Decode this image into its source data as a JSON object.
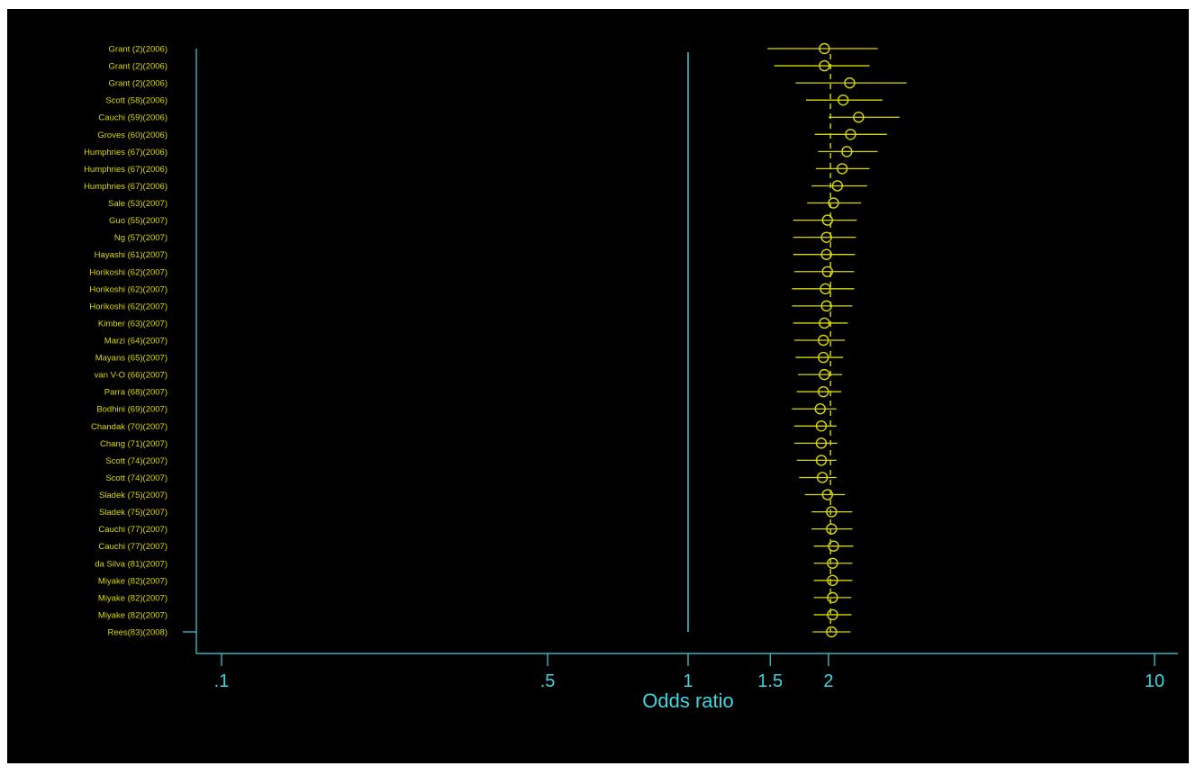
{
  "colors": {
    "background": "#000000",
    "axis": "#3fd6e0",
    "series": "#d9d900"
  },
  "chart_data": {
    "type": "scatter",
    "subtype": "forest-plot",
    "title": "",
    "xlabel": "Odds ratio",
    "ylabel": "",
    "x_scale": "log",
    "xlim": [
      0.09,
      11
    ],
    "x_ticks": [
      {
        "value": 0.1,
        "label": ".1"
      },
      {
        "value": 0.5,
        "label": ".5"
      },
      {
        "value": 1,
        "label": "1"
      },
      {
        "value": 1.5,
        "label": "1.5"
      },
      {
        "value": 2,
        "label": "2"
      },
      {
        "value": 10,
        "label": "10"
      }
    ],
    "null_line": 1,
    "pooled_estimate": 2.02,
    "grid": false,
    "legend": "none",
    "studies": [
      {
        "label": "Grant (2)(2006)",
        "or": 1.96,
        "lo": 1.48,
        "hi": 2.55
      },
      {
        "label": "Grant (2)(2006)",
        "or": 1.96,
        "lo": 1.53,
        "hi": 2.45
      },
      {
        "label": "Grant (2)(2006)",
        "or": 2.22,
        "lo": 1.7,
        "hi": 2.94
      },
      {
        "label": "Scott (58)(2006)",
        "or": 2.15,
        "lo": 1.79,
        "hi": 2.61
      },
      {
        "label": "Cauchi (59)(2006)",
        "or": 2.32,
        "lo": 2.0,
        "hi": 2.84
      },
      {
        "label": "Groves (60)(2006)",
        "or": 2.23,
        "lo": 1.87,
        "hi": 2.67
      },
      {
        "label": "Humphries (67)(2006)",
        "or": 2.19,
        "lo": 1.9,
        "hi": 2.55
      },
      {
        "label": "Humphries (67)(2006)",
        "or": 2.14,
        "lo": 1.88,
        "hi": 2.45
      },
      {
        "label": "Humphries (67)(2006)",
        "or": 2.09,
        "lo": 1.84,
        "hi": 2.42
      },
      {
        "label": "Sale (53)(2007)",
        "or": 2.05,
        "lo": 1.8,
        "hi": 2.35
      },
      {
        "label": "Guo (55)(2007)",
        "or": 1.99,
        "lo": 1.68,
        "hi": 2.3
      },
      {
        "label": "Ng (57)(2007)",
        "or": 1.98,
        "lo": 1.68,
        "hi": 2.29
      },
      {
        "label": "Hayashi (61)(2007)",
        "or": 1.98,
        "lo": 1.68,
        "hi": 2.28
      },
      {
        "label": "Horikoshi (62)(2007)",
        "or": 1.99,
        "lo": 1.69,
        "hi": 2.27
      },
      {
        "label": "Horikoshi (62)(2007)",
        "or": 1.97,
        "lo": 1.67,
        "hi": 2.27
      },
      {
        "label": "Horikoshi (62)(2007)",
        "or": 1.98,
        "lo": 1.67,
        "hi": 2.25
      },
      {
        "label": "Kimber (63)(2007)",
        "or": 1.96,
        "lo": 1.68,
        "hi": 2.2
      },
      {
        "label": "Marzi (64)(2007)",
        "or": 1.95,
        "lo": 1.69,
        "hi": 2.17
      },
      {
        "label": "Mayans (65)(2007)",
        "or": 1.95,
        "lo": 1.7,
        "hi": 2.15
      },
      {
        "label": "van V-O (66)(2007)",
        "or": 1.96,
        "lo": 1.72,
        "hi": 2.14
      },
      {
        "label": "Parra (68)(2007)",
        "or": 1.95,
        "lo": 1.71,
        "hi": 2.13
      },
      {
        "label": "Bodhini (69)(2007)",
        "or": 1.92,
        "lo": 1.67,
        "hi": 2.08
      },
      {
        "label": "Chandak (70)(2007)",
        "or": 1.93,
        "lo": 1.69,
        "hi": 2.08
      },
      {
        "label": "Chang (71)(2007)",
        "or": 1.93,
        "lo": 1.69,
        "hi": 2.09
      },
      {
        "label": "Scott (74)(2007)",
        "or": 1.93,
        "lo": 1.71,
        "hi": 2.08
      },
      {
        "label": "Scott (74)(2007)",
        "or": 1.94,
        "lo": 1.73,
        "hi": 2.08
      },
      {
        "label": "Sladek (75)(2007)",
        "or": 1.99,
        "lo": 1.78,
        "hi": 2.17
      },
      {
        "label": "Sladek (75)(2007)",
        "or": 2.03,
        "lo": 1.84,
        "hi": 2.25
      },
      {
        "label": "Cauchi (77)(2007)",
        "or": 2.03,
        "lo": 1.84,
        "hi": 2.25
      },
      {
        "label": "Cauchi (77)(2007)",
        "or": 2.05,
        "lo": 1.86,
        "hi": 2.26
      },
      {
        "label": "da Silva (81)(2007)",
        "or": 2.04,
        "lo": 1.86,
        "hi": 2.25
      },
      {
        "label": "Miyake (82)(2007)",
        "or": 2.04,
        "lo": 1.86,
        "hi": 2.25
      },
      {
        "label": "Miyake (82)(2007)",
        "or": 2.04,
        "lo": 1.86,
        "hi": 2.24
      },
      {
        "label": "Miyake (82)(2007)",
        "or": 2.04,
        "lo": 1.86,
        "hi": 2.24
      },
      {
        "label": "Rees(83)(2008)",
        "or": 2.03,
        "lo": 1.85,
        "hi": 2.23
      }
    ]
  }
}
